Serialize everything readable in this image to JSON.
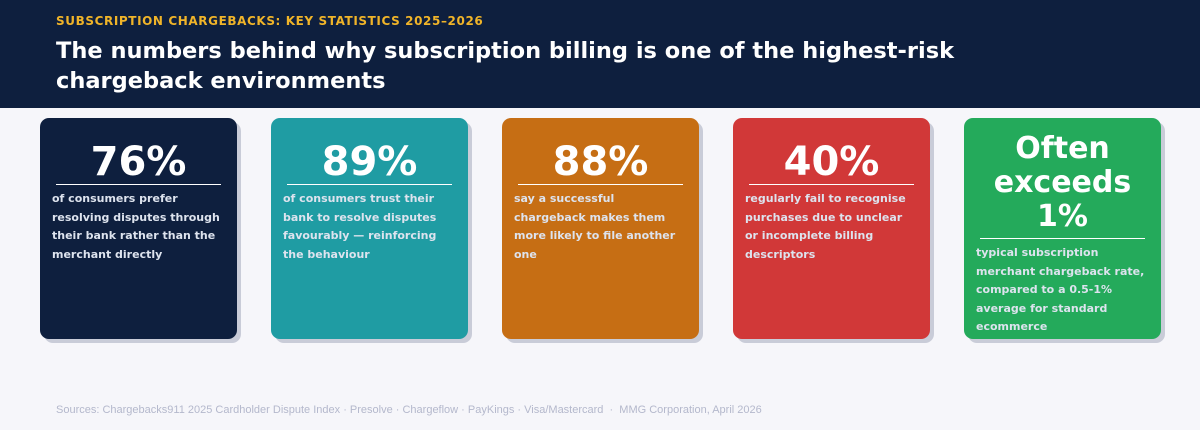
{
  "header": {
    "eyebrow": "SUBSCRIPTION CHARGEBACKS: KEY STATISTICS 2025–2026",
    "title": "The numbers behind why subscription billing is one of the highest-risk chargeback environments"
  },
  "cards": [
    {
      "stat": "76%",
      "description": "of consumers prefer resolving disputes through their bank rather than the merchant directly",
      "color": "#0e1f3e"
    },
    {
      "stat": "89%",
      "description": "of consumers trust their bank to resolve disputes favourably — reinforcing the behaviour",
      "color": "#1f9ca3"
    },
    {
      "stat": "88%",
      "description": "say a successful chargeback makes them more likely to file another one",
      "color": "#c66e14"
    },
    {
      "stat": "40%",
      "description": "regularly fail to recognise purchases due to unclear or incomplete billing descriptors",
      "color": "#d13838"
    },
    {
      "stat": "Often exceeds 1%",
      "description": "typical subscription merchant chargeback rate, compared to a 0.5-1% average for standard ecommerce",
      "color": "#24aa5b"
    }
  ],
  "footer": "Sources: Chargebacks911 2025 Cardholder Dispute Index · Presolve · Chargeflow · PayKings · Visa/Mastercard  ·  MMG Corporation, April 2026"
}
